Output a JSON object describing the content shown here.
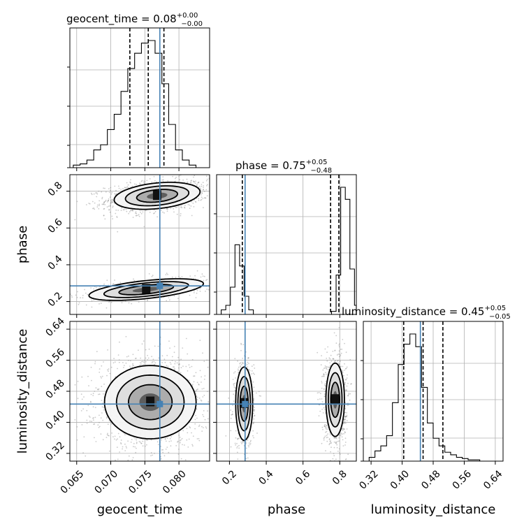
{
  "chart_data": {
    "type": "corner",
    "truth_color": "#4682b4",
    "parameters": [
      {
        "name": "geocent_time",
        "label": "geocent_time",
        "title": {
          "prefix": "geocent_time = 0.08",
          "plus": "+0.00",
          "minus": "−0.00"
        },
        "range": [
          0.064,
          0.0845
        ],
        "ticks": [
          0.065,
          0.07,
          0.075,
          0.08
        ],
        "tick_labels": [
          "0.065",
          "0.070",
          "0.075",
          "0.080"
        ],
        "truth": 0.0772,
        "quantiles": [
          0.0728,
          0.0755,
          0.0778
        ],
        "hist": {
          "edges_start": 0.0645,
          "bin_width": 0.001,
          "counts": [
            0.02,
            0.03,
            0.06,
            0.14,
            0.18,
            0.3,
            0.42,
            0.6,
            0.78,
            0.9,
            0.98,
            1.0,
            0.9,
            0.66,
            0.34,
            0.14,
            0.06,
            0.02,
            0.0
          ]
        }
      },
      {
        "name": "phase",
        "label": "phase",
        "title": {
          "prefix": "phase = 0.75",
          "plus": "+0.05",
          "minus": "−0.48"
        },
        "range": [
          0.13,
          0.89
        ],
        "ticks": [
          0.2,
          0.4,
          0.6,
          0.8
        ],
        "tick_labels": [
          "0.2",
          "0.4",
          "0.6",
          "0.8"
        ],
        "truth": 0.285,
        "quantiles": [
          0.27,
          0.75,
          0.795
        ],
        "hist": {
          "edges_start": 0.13,
          "bin_width": 0.025,
          "counts": [
            0.0,
            0.03,
            0.06,
            0.18,
            0.46,
            0.32,
            0.12,
            0.03,
            0.0,
            0.0,
            0.0,
            0.0,
            0.0,
            0.0,
            0.0,
            0.0,
            0.0,
            0.0,
            0.0,
            0.0,
            0.0,
            0.0,
            0.0,
            0.0,
            0.0,
            0.02,
            0.26,
            0.84,
            0.76,
            0.3,
            0.06
          ]
        }
      },
      {
        "name": "luminosity_distance",
        "label": "luminosity_distance",
        "title": {
          "prefix": "luminosity_distance = 0.45",
          "plus": "+0.05",
          "minus": "−0.05"
        },
        "range": [
          0.3,
          0.66
        ],
        "ticks": [
          0.32,
          0.4,
          0.48,
          0.56,
          0.64
        ],
        "tick_labels": [
          "0.32",
          "0.40",
          "0.48",
          "0.56",
          "0.64"
        ],
        "truth": 0.447,
        "quantiles": [
          0.404,
          0.454,
          0.505
        ],
        "hist": {
          "edges_start": 0.3,
          "bin_width": 0.015,
          "counts": [
            0.0,
            0.03,
            0.08,
            0.12,
            0.2,
            0.46,
            0.76,
            0.92,
            1.0,
            0.9,
            0.58,
            0.3,
            0.18,
            0.12,
            0.07,
            0.05,
            0.03,
            0.02,
            0.01,
            0.01,
            0.0,
            0.0,
            0.0,
            0.0
          ]
        }
      }
    ],
    "pairs": [
      {
        "x": "geocent_time",
        "y": "phase",
        "modes": [
          {
            "x": 0.0768,
            "y": 0.775,
            "sx": 0.003,
            "sy": 0.035,
            "rho": 0.3,
            "weight": 0.75,
            "slope": 7.0
          },
          {
            "x": 0.0752,
            "y": 0.265,
            "sx": 0.004,
            "sy": 0.028,
            "rho": 0.55,
            "weight": 0.25,
            "slope": 8.5
          }
        ]
      },
      {
        "x": "geocent_time",
        "y": "luminosity_distance",
        "modes": [
          {
            "x": 0.0758,
            "y": 0.452,
            "sx": 0.0032,
            "sy": 0.045,
            "rho": 0.0,
            "weight": 1.0,
            "slope": 0.0
          }
        ]
      },
      {
        "x": "phase",
        "y": "luminosity_distance",
        "modes": [
          {
            "x": 0.28,
            "y": 0.448,
            "sx": 0.022,
            "sy": 0.045,
            "rho": 0.0,
            "weight": 0.35,
            "slope": 0.0
          },
          {
            "x": 0.775,
            "y": 0.458,
            "sx": 0.024,
            "sy": 0.045,
            "rho": 0.0,
            "weight": 0.65,
            "slope": 0.0
          }
        ]
      }
    ]
  }
}
